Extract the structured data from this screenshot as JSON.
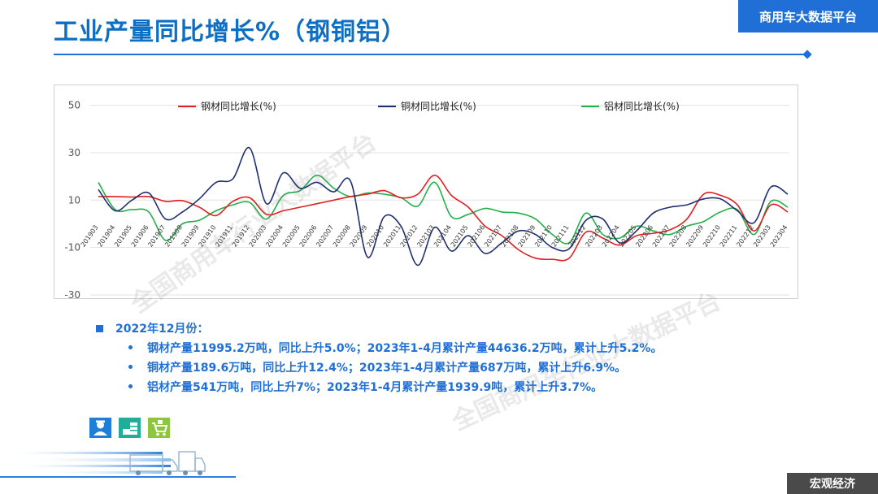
{
  "header": {
    "title": "工业产量同比增长%（钢铜铝）",
    "brand": "商用车大数据平台"
  },
  "watermark": {
    "text": "全国商用车行业大数据平台"
  },
  "chart_data": {
    "type": "line",
    "x": [
      "201903",
      "201904",
      "201905",
      "201906",
      "201907",
      "201908",
      "201909",
      "201910",
      "201911",
      "201912",
      "202003",
      "202004",
      "202005",
      "202006",
      "202007",
      "202008",
      "202009",
      "202010",
      "202011",
      "202012",
      "202103",
      "202104",
      "202105",
      "202106",
      "202107",
      "202108",
      "202109",
      "202110",
      "202111",
      "202112",
      "202203",
      "202204",
      "202205",
      "202206",
      "202207",
      "202208",
      "202209",
      "202210",
      "202211",
      "202212",
      "202303",
      "202304"
    ],
    "yticks": [
      50,
      30,
      10,
      -10,
      -30
    ],
    "ylim": [
      -30,
      55
    ],
    "smooth": true,
    "series": [
      {
        "name": "钢材同比增长(%)",
        "color": "#e02020",
        "values": [
          11.5,
          11.5,
          11.3,
          11.5,
          9.5,
          9.8,
          7.0,
          3.5,
          9.5,
          11.0,
          4.0,
          5.5,
          7.0,
          8.5,
          10.0,
          11.5,
          12.5,
          14.0,
          11.0,
          12.5,
          20.5,
          12.0,
          7.0,
          -1.0,
          -5.0,
          -11.0,
          -14.5,
          -15.0,
          -14.5,
          -3.5,
          -6.0,
          -9.0,
          -5.0,
          -4.0,
          -2.5,
          2.0,
          12.5,
          12.0,
          8.0,
          -3.0,
          8.0,
          5.0
        ]
      },
      {
        "name": "铜材同比增长(%)",
        "color": "#1f2f6f",
        "values": [
          14.5,
          5.5,
          10.0,
          13.0,
          2.0,
          5.0,
          10.5,
          17.5,
          19.0,
          32.0,
          8.5,
          21.5,
          15.0,
          17.5,
          13.5,
          18.0,
          -14.0,
          3.0,
          -1.0,
          -17.5,
          -1.5,
          -11.5,
          -5.0,
          -12.5,
          -8.0,
          -3.0,
          -4.5,
          -10.0,
          -10.5,
          1.5,
          2.0,
          -8.0,
          -3.0,
          4.5,
          7.0,
          8.0,
          10.5,
          10.5,
          5.5,
          0.5,
          15.5,
          12.5
        ]
      },
      {
        "name": "铝材同比增长(%)",
        "color": "#22b04a",
        "values": [
          17.5,
          6.0,
          6.0,
          5.0,
          -7.0,
          0.0,
          1.5,
          5.5,
          8.0,
          9.0,
          2.0,
          12.0,
          14.0,
          20.5,
          15.0,
          11.5,
          13.0,
          12.5,
          11.0,
          7.5,
          17.5,
          3.0,
          4.0,
          6.5,
          5.0,
          4.5,
          2.0,
          -4.5,
          -8.0,
          4.5,
          -4.5,
          -6.0,
          -1.0,
          -3.0,
          -4.5,
          -1.0,
          1.0,
          5.0,
          6.0,
          -4.5,
          9.5,
          7.0
        ]
      }
    ]
  },
  "summary": {
    "head": "2022年12月份：",
    "items": [
      "钢材产量11995.2万吨，同比上升5.0%；2023年1-4月累计产量44636.2万吨，累计上升5.2%。",
      "铜材产量189.6万吨，同比上升12.4%；2023年1-4月累计产量687万吨，累计上升6.9%。",
      "铝材产量541万吨，同比上升7%；2023年1-4月累计产量1939.9吨，累计上升3.7%。"
    ]
  },
  "footer": {
    "label": "宏观经济"
  }
}
